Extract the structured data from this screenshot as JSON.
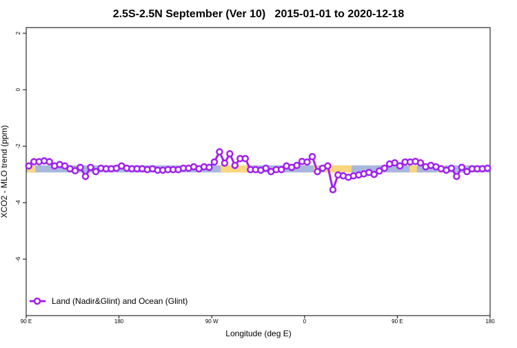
{
  "chart_data": {
    "type": "line",
    "title": "2.5S-2.5N September (Ver 10)   2015-01-01 to 2020-12-18",
    "x_label": "Longitude (deg E)",
    "y_label": "XCO2 - MLO trend (ppm)",
    "xlim": [
      90,
      540
    ],
    "ylim": [
      -8,
      2.2
    ],
    "xticks": [
      {
        "value": 90,
        "label": "90 E"
      },
      180,
      {
        "value": 270,
        "label": "90 W"
      },
      {
        "value": 360,
        "label": "0"
      },
      {
        "value": 450,
        "label": "90 E"
      },
      {
        "value": 540,
        "label": "180"
      }
    ],
    "yticks": [
      2,
      0,
      -2,
      -4,
      -6
    ],
    "legend": "bottom-left",
    "surface_band": {
      "ylim": [
        -2.93,
        -2.68
      ],
      "ocean_color": "#a8b7dc",
      "land_color": "#fbd67e",
      "land_segments": [
        [
          91,
          99
        ],
        [
          278.6,
          306.6
        ],
        [
          368.8,
          373.5
        ],
        [
          378.8,
          405.6
        ],
        [
          462,
          469
        ],
        [
          489,
          496
        ]
      ]
    },
    "x": [
      92.5,
      97.5,
      102.5,
      107.5,
      112.5,
      117.5,
      122.5,
      127.5,
      132.5,
      137.5,
      142.5,
      147.5,
      152.5,
      157.5,
      162.5,
      167.5,
      172.5,
      177.5,
      182.5,
      187.5,
      192.5,
      197.5,
      202.5,
      207.5,
      212.5,
      217.5,
      222.5,
      227.5,
      232.5,
      237.5,
      242.5,
      247.5,
      252.5,
      257.5,
      262.5,
      267.5,
      272.5,
      277.5,
      282.5,
      287.5,
      292.5,
      297.5,
      302.5,
      307.5,
      312.5,
      317.5,
      322.5,
      327.5,
      332.5,
      337.5,
      342.5,
      347.5,
      352.5,
      357.5,
      362.5,
      367.5,
      372.5,
      377.5,
      382.5,
      387.5,
      392.5,
      397.5,
      402.5,
      407.5,
      412.5,
      417.5,
      422.5,
      427.5,
      432.5,
      437.5,
      442.5,
      447.5,
      452.5,
      457.5,
      462.5,
      467.5,
      472.5,
      477.5,
      482.5,
      487.5,
      492.5,
      497.5,
      502.5,
      507.5,
      512.5,
      517.5,
      522.5,
      527.5,
      532.5,
      537.5
    ],
    "series": [
      {
        "name": "Land (Nadir&Glint) and Ocean (Glint)",
        "color": "#a020f0",
        "values": [
          -2.7,
          -2.55,
          -2.55,
          -2.52,
          -2.55,
          -2.7,
          -2.65,
          -2.7,
          -2.8,
          -2.87,
          -2.75,
          -3.07,
          -2.75,
          -2.9,
          -2.78,
          -2.8,
          -2.8,
          -2.78,
          -2.7,
          -2.78,
          -2.8,
          -2.8,
          -2.8,
          -2.83,
          -2.8,
          -2.85,
          -2.85,
          -2.83,
          -2.83,
          -2.83,
          -2.78,
          -2.78,
          -2.73,
          -2.8,
          -2.73,
          -2.75,
          -2.56,
          -2.2,
          -2.6,
          -2.27,
          -2.68,
          -2.44,
          -2.44,
          -2.83,
          -2.83,
          -2.85,
          -2.78,
          -2.9,
          -2.83,
          -2.83,
          -2.7,
          -2.75,
          -2.68,
          -2.54,
          -2.56,
          -2.37,
          -2.9,
          -2.78,
          -2.7,
          -3.54,
          -3.02,
          -3.05,
          -3.1,
          -3.05,
          -3.02,
          -2.98,
          -2.93,
          -3.0,
          -2.88,
          -2.78,
          -2.63,
          -2.59,
          -2.7,
          -2.56,
          -2.56,
          -2.54,
          -2.59,
          -2.73,
          -2.68,
          -2.73,
          -2.8,
          -2.85,
          -2.78,
          -3.07,
          -2.75,
          -2.9,
          -2.8,
          -2.8,
          -2.8,
          -2.78
        ]
      }
    ]
  }
}
